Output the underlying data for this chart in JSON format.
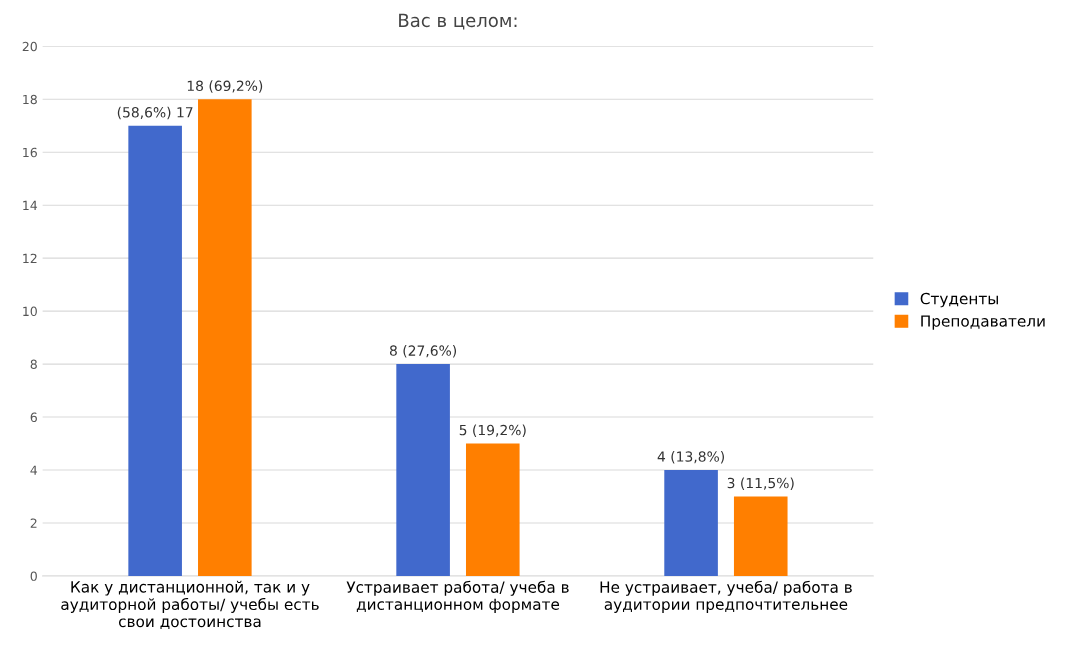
{
  "chart_data": {
    "type": "bar",
    "title": "Вас в целом:",
    "categories": [
      "Как у дистанционной, так и у\nаудиторной работы/ учебы есть\nсвои достоинства",
      "Устраивает работа/ учеба в\nдистанционном формате",
      "Не устраивает, учеба/ работа в\nаудитории предпочтительнее"
    ],
    "series": [
      {
        "name": "Студенты",
        "color": "#4169cc",
        "values": [
          17,
          8,
          4
        ],
        "value_labels": [
          "(58,6%) 17",
          "8 (27,6%)",
          "4 (13,8%)"
        ]
      },
      {
        "name": "Преподаватели",
        "color": "#ff7f00",
        "values": [
          18,
          5,
          3
        ],
        "value_labels": [
          "18 (69,2%)",
          "5 (19,2%)",
          "3 (11,5%)"
        ]
      }
    ],
    "ylim": [
      0,
      20
    ],
    "yticks": [
      0,
      2,
      4,
      6,
      8,
      10,
      12,
      14,
      16,
      18,
      20
    ],
    "grid": "y",
    "legend": "right"
  }
}
